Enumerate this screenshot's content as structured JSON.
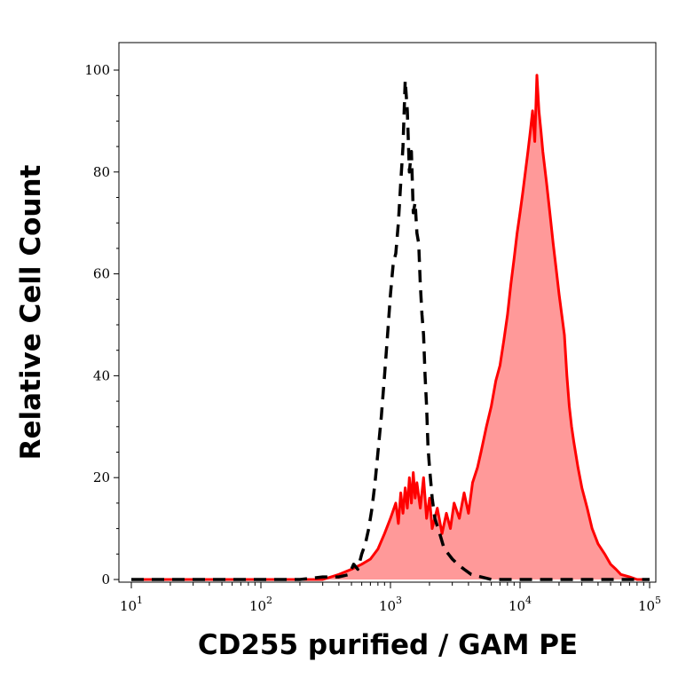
{
  "chart_data": {
    "type": "area",
    "title": "",
    "xlabel": "CD255 purified / GAM PE",
    "ylabel": "Relative Cell Count",
    "x_scale": "log",
    "xlim": [
      10,
      100000
    ],
    "ylim": [
      0,
      100
    ],
    "x_ticks": [
      {
        "value": 10,
        "base": "10",
        "exp": "1"
      },
      {
        "value": 100,
        "base": "10",
        "exp": "2"
      },
      {
        "value": 1000,
        "base": "10",
        "exp": "3"
      },
      {
        "value": 10000,
        "base": "10",
        "exp": "4"
      },
      {
        "value": 100000,
        "base": "10",
        "exp": "5"
      }
    ],
    "y_ticks": [
      0,
      20,
      40,
      60,
      80,
      100
    ],
    "grid": false,
    "legend": "none",
    "series": [
      {
        "style": "dashed",
        "color": "#000000",
        "filled": false,
        "points": [
          [
            10,
            0
          ],
          [
            200,
            0
          ],
          [
            300,
            0.5
          ],
          [
            400,
            0.5
          ],
          [
            480,
            1
          ],
          [
            520,
            3
          ],
          [
            560,
            2
          ],
          [
            600,
            5
          ],
          [
            640,
            7
          ],
          [
            680,
            10
          ],
          [
            720,
            14
          ],
          [
            760,
            19
          ],
          [
            800,
            25
          ],
          [
            850,
            32
          ],
          [
            900,
            40
          ],
          [
            950,
            48
          ],
          [
            1000,
            56
          ],
          [
            1050,
            62
          ],
          [
            1100,
            64
          ],
          [
            1150,
            70
          ],
          [
            1200,
            78
          ],
          [
            1250,
            85
          ],
          [
            1300,
            98
          ],
          [
            1350,
            92
          ],
          [
            1400,
            80
          ],
          [
            1450,
            84
          ],
          [
            1500,
            72
          ],
          [
            1550,
            74
          ],
          [
            1600,
            68
          ],
          [
            1650,
            66
          ],
          [
            1700,
            58
          ],
          [
            1750,
            52
          ],
          [
            1800,
            48
          ],
          [
            1850,
            40
          ],
          [
            1900,
            34
          ],
          [
            1950,
            26
          ],
          [
            2000,
            22
          ],
          [
            2100,
            16
          ],
          [
            2200,
            12
          ],
          [
            2400,
            9
          ],
          [
            2600,
            6
          ],
          [
            2800,
            5
          ],
          [
            3000,
            4
          ],
          [
            3300,
            3
          ],
          [
            3700,
            2
          ],
          [
            4200,
            1
          ],
          [
            5000,
            0.5
          ],
          [
            6000,
            0
          ],
          [
            100000,
            0
          ]
        ]
      },
      {
        "style": "solid",
        "color": "#ff0000",
        "fill": "#ff9999",
        "filled": true,
        "points": [
          [
            10,
            0
          ],
          [
            300,
            0
          ],
          [
            400,
            1
          ],
          [
            500,
            2
          ],
          [
            600,
            3
          ],
          [
            700,
            4
          ],
          [
            800,
            6
          ],
          [
            900,
            9
          ],
          [
            1000,
            12
          ],
          [
            1100,
            15
          ],
          [
            1150,
            11
          ],
          [
            1200,
            17
          ],
          [
            1250,
            13
          ],
          [
            1300,
            18
          ],
          [
            1350,
            14
          ],
          [
            1400,
            20
          ],
          [
            1450,
            15
          ],
          [
            1500,
            21
          ],
          [
            1550,
            16
          ],
          [
            1600,
            19
          ],
          [
            1700,
            14
          ],
          [
            1800,
            20
          ],
          [
            1900,
            12
          ],
          [
            2000,
            16
          ],
          [
            2100,
            10
          ],
          [
            2300,
            14
          ],
          [
            2500,
            9
          ],
          [
            2700,
            13
          ],
          [
            2900,
            10
          ],
          [
            3100,
            15
          ],
          [
            3400,
            12
          ],
          [
            3700,
            17
          ],
          [
            4000,
            13
          ],
          [
            4300,
            19
          ],
          [
            4700,
            22
          ],
          [
            5000,
            25
          ],
          [
            5500,
            30
          ],
          [
            6000,
            34
          ],
          [
            6500,
            39
          ],
          [
            7000,
            42
          ],
          [
            7500,
            47
          ],
          [
            8000,
            52
          ],
          [
            8500,
            58
          ],
          [
            9000,
            63
          ],
          [
            9500,
            68
          ],
          [
            10000,
            72
          ],
          [
            10500,
            76
          ],
          [
            11000,
            80
          ],
          [
            11500,
            84
          ],
          [
            12000,
            88
          ],
          [
            12500,
            92
          ],
          [
            13000,
            86
          ],
          [
            13500,
            99
          ],
          [
            14000,
            92
          ],
          [
            14500,
            88
          ],
          [
            15000,
            84
          ],
          [
            16000,
            78
          ],
          [
            17000,
            72
          ],
          [
            18000,
            66
          ],
          [
            19000,
            61
          ],
          [
            20000,
            56
          ],
          [
            21000,
            52
          ],
          [
            22000,
            48
          ],
          [
            23000,
            40
          ],
          [
            24000,
            34
          ],
          [
            25000,
            30
          ],
          [
            26000,
            27
          ],
          [
            28000,
            22
          ],
          [
            30000,
            18
          ],
          [
            33000,
            14
          ],
          [
            36000,
            10
          ],
          [
            40000,
            7
          ],
          [
            45000,
            5
          ],
          [
            50000,
            3
          ],
          [
            55000,
            2
          ],
          [
            60000,
            1
          ],
          [
            70000,
            0.5
          ],
          [
            80000,
            0
          ],
          [
            100000,
            0
          ]
        ]
      }
    ]
  }
}
